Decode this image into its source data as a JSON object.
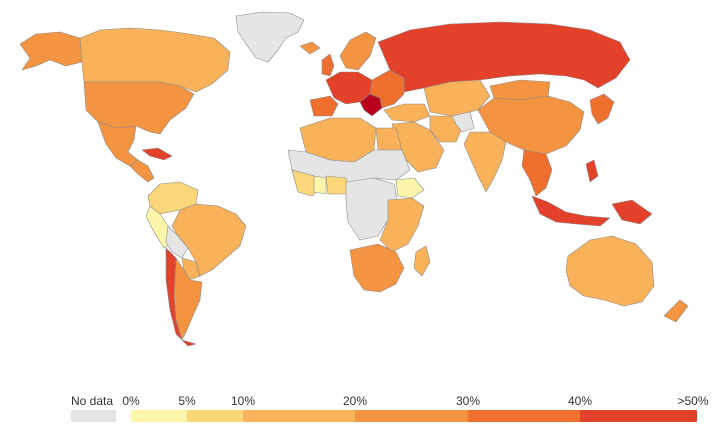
{
  "legend": {
    "no_data_label": "No data",
    "no_data_color": "#e5e5e5",
    "bins": [
      {
        "label": "0%",
        "color": "#fdf5a9"
      },
      {
        "label": "5%",
        "color": "#fbd77a"
      },
      {
        "label": "10%",
        "color": "#f9b25a"
      },
      {
        "label": "20%",
        "color": "#f49440"
      },
      {
        "label": "30%",
        "color": "#ef6f2e"
      },
      {
        "label": "40%",
        "color": "#e4412a"
      },
      {
        "label": ">50%",
        "color": "#b8001f"
      }
    ]
  },
  "countries": [
    {
      "name": "greenland",
      "color": "#e5e5e5"
    },
    {
      "name": "alaska",
      "color": "#f49440"
    },
    {
      "name": "canada",
      "color": "#f9b25a"
    },
    {
      "name": "usa",
      "color": "#f49440"
    },
    {
      "name": "mexico",
      "color": "#f49440"
    },
    {
      "name": "central-america",
      "color": "#f49440"
    },
    {
      "name": "caribbean",
      "color": "#e4412a"
    },
    {
      "name": "colombia-venezuela",
      "color": "#fbd77a"
    },
    {
      "name": "peru",
      "color": "#fdf5a9"
    },
    {
      "name": "brazil",
      "color": "#f9b25a"
    },
    {
      "name": "bolivia",
      "color": "#e5e5e5"
    },
    {
      "name": "paraguay",
      "color": "#f9b25a"
    },
    {
      "name": "argentina",
      "color": "#f49440"
    },
    {
      "name": "chile",
      "color": "#e4412a"
    },
    {
      "name": "iceland",
      "color": "#f49440"
    },
    {
      "name": "uk",
      "color": "#ef6f2e"
    },
    {
      "name": "scandinavia",
      "color": "#f49440"
    },
    {
      "name": "western-europe",
      "color": "#e4412a"
    },
    {
      "name": "iberia",
      "color": "#ef6f2e"
    },
    {
      "name": "balkans",
      "color": "#b8001f"
    },
    {
      "name": "eastern-europe",
      "color": "#ef6f2e"
    },
    {
      "name": "russia",
      "color": "#e4412a"
    },
    {
      "name": "turkey-caucasus",
      "color": "#f9b25a"
    },
    {
      "name": "central-asia",
      "color": "#f9b25a"
    },
    {
      "name": "mongolia",
      "color": "#f49440"
    },
    {
      "name": "china",
      "color": "#f49440"
    },
    {
      "name": "japan-korea",
      "color": "#ef6f2e"
    },
    {
      "name": "middle-east",
      "color": "#f9b25a"
    },
    {
      "name": "iran",
      "color": "#f9b25a"
    },
    {
      "name": "afghanistan",
      "color": "#e5e5e5"
    },
    {
      "name": "india",
      "color": "#f9b25a"
    },
    {
      "name": "southeast-asia",
      "color": "#ef6f2e"
    },
    {
      "name": "indonesia",
      "color": "#e4412a"
    },
    {
      "name": "philippines",
      "color": "#e4412a"
    },
    {
      "name": "new-guinea",
      "color": "#e4412a"
    },
    {
      "name": "australia",
      "color": "#f9b25a"
    },
    {
      "name": "new-zealand",
      "color": "#f49440"
    },
    {
      "name": "north-africa",
      "color": "#f9b25a"
    },
    {
      "name": "egypt",
      "color": "#f9b25a"
    },
    {
      "name": "sahel-gray",
      "color": "#e5e5e5"
    },
    {
      "name": "west-africa",
      "color": "#fbd77a"
    },
    {
      "name": "ghana",
      "color": "#fdf5a9"
    },
    {
      "name": "nigeria",
      "color": "#fbd77a"
    },
    {
      "name": "central-africa",
      "color": "#e5e5e5"
    },
    {
      "name": "ethiopia",
      "color": "#fdf5a9"
    },
    {
      "name": "east-africa",
      "color": "#f9b25a"
    },
    {
      "name": "southern-africa",
      "color": "#f49440"
    },
    {
      "name": "madagascar",
      "color": "#f9b25a"
    }
  ]
}
